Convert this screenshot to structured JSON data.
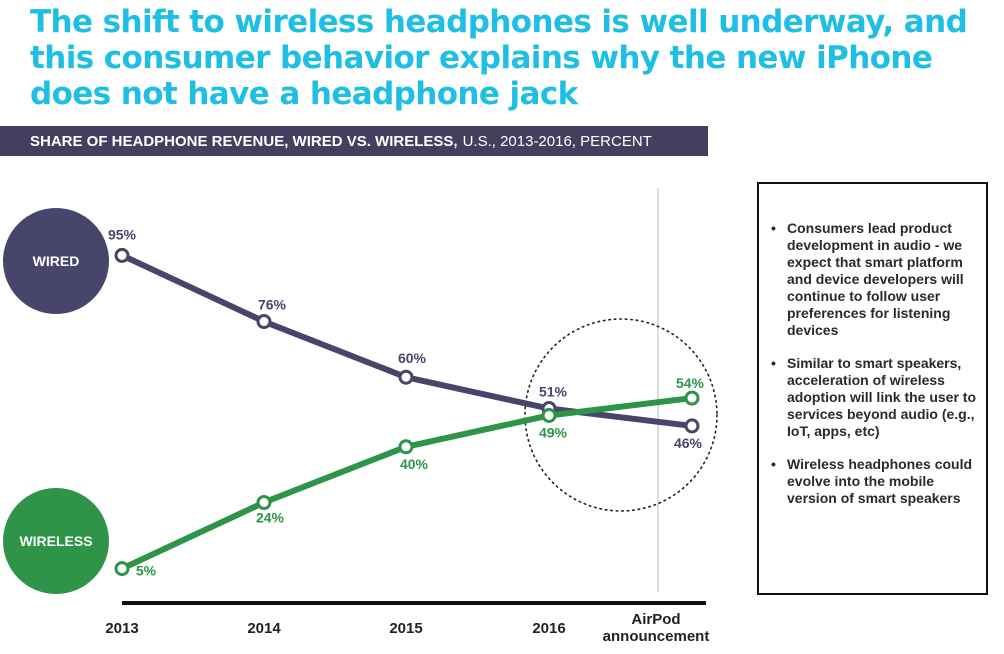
{
  "headline": "The shift to wireless headphones is well underway, and this consumer behavior explains why the new iPhone does not have a headphone jack",
  "banner": {
    "bold_text": "SHARE OF HEADPHONE REVENUE, WIRED VS. WIRELESS,",
    "light_text": "U.S., 2013-2016, PERCENT"
  },
  "chart_data": {
    "type": "line",
    "categories": [
      "2013",
      "2014",
      "2015",
      "2016",
      "AirPod announcement"
    ],
    "series": [
      {
        "name": "WIRED",
        "color": "#48456a",
        "values": [
          95,
          76,
          60,
          51,
          46
        ],
        "labels": [
          "95%",
          "76%",
          "60%",
          "51%",
          "46%"
        ]
      },
      {
        "name": "WIRELESS",
        "color": "#2e9447",
        "values": [
          5,
          24,
          40,
          49,
          54
        ],
        "labels": [
          "5%",
          "24%",
          "40%",
          "49%",
          "54%"
        ]
      }
    ],
    "ylim": [
      0,
      100
    ],
    "grid": false,
    "annotation": "dotted circle highlighting the crossover near 2016",
    "legend": "series names shown in colored circles at left"
  },
  "notes": {
    "bullet_glyph": "•",
    "items": [
      "Consumers lead product development in audio - we expect that smart platform and device developers will continue to follow user preferences for listening devices",
      "Similar to smart speakers, acceleration of wireless adoption will link the user to services beyond audio (e.g., IoT, apps, etc)",
      "Wireless headphones could evolve into the mobile version of smart speakers"
    ]
  }
}
